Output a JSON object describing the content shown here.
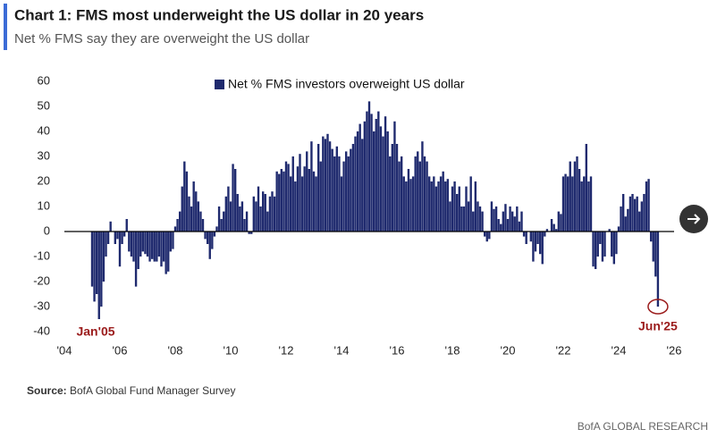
{
  "chart_data": {
    "type": "bar",
    "title": "Chart 1: FMS most underweight the US dollar in 20 years",
    "subtitle": "Net % FMS say they are overweight the US dollar",
    "source_label": "Source:",
    "source": "BofA Global Fund Manager Survey",
    "credit": "BofA GLOBAL RESEARCH",
    "annotations": [
      "Jan'05",
      "Jun'25"
    ],
    "legend": "top",
    "ylim": [
      -40,
      60
    ],
    "yticks": [
      -40,
      -30,
      -20,
      -10,
      0,
      10,
      20,
      30,
      40,
      50,
      60
    ],
    "xlim": [
      2004,
      2026
    ],
    "xticks": [
      {
        "value": 2004,
        "label": "'04"
      },
      {
        "value": 2006,
        "label": "'06"
      },
      {
        "value": 2008,
        "label": "'08"
      },
      {
        "value": 2010,
        "label": "'10"
      },
      {
        "value": 2012,
        "label": "'12"
      },
      {
        "value": 2014,
        "label": "'14"
      },
      {
        "value": 2016,
        "label": "'16"
      },
      {
        "value": 2018,
        "label": "'18"
      },
      {
        "value": 2020,
        "label": "'20"
      },
      {
        "value": 2022,
        "label": "'22"
      },
      {
        "value": 2024,
        "label": "'24"
      },
      {
        "value": 2026,
        "label": "'26"
      }
    ],
    "x": [
      2005,
      2005.083,
      2005.167,
      2005.25,
      2005.333,
      2005.417,
      2005.5,
      2005.583,
      2005.667,
      2005.75,
      2005.833,
      2005.917,
      2006,
      2006.083,
      2006.167,
      2006.25,
      2006.333,
      2006.417,
      2006.5,
      2006.583,
      2006.667,
      2006.75,
      2006.833,
      2006.917,
      2007,
      2007.083,
      2007.167,
      2007.25,
      2007.333,
      2007.417,
      2007.5,
      2007.583,
      2007.667,
      2007.75,
      2007.833,
      2007.917,
      2008,
      2008.083,
      2008.167,
      2008.25,
      2008.333,
      2008.417,
      2008.5,
      2008.583,
      2008.667,
      2008.75,
      2008.833,
      2008.917,
      2009,
      2009.083,
      2009.167,
      2009.25,
      2009.333,
      2009.417,
      2009.5,
      2009.583,
      2009.667,
      2009.75,
      2009.833,
      2009.917,
      2010,
      2010.083,
      2010.167,
      2010.25,
      2010.333,
      2010.417,
      2010.5,
      2010.583,
      2010.667,
      2010.75,
      2010.833,
      2010.917,
      2011,
      2011.083,
      2011.167,
      2011.25,
      2011.333,
      2011.417,
      2011.5,
      2011.583,
      2011.667,
      2011.75,
      2011.833,
      2011.917,
      2012,
      2012.083,
      2012.167,
      2012.25,
      2012.333,
      2012.417,
      2012.5,
      2012.583,
      2012.667,
      2012.75,
      2012.833,
      2012.917,
      2013,
      2013.083,
      2013.167,
      2013.25,
      2013.333,
      2013.417,
      2013.5,
      2013.583,
      2013.667,
      2013.75,
      2013.833,
      2013.917,
      2014,
      2014.083,
      2014.167,
      2014.25,
      2014.333,
      2014.417,
      2014.5,
      2014.583,
      2014.667,
      2014.75,
      2014.833,
      2014.917,
      2015,
      2015.083,
      2015.167,
      2015.25,
      2015.333,
      2015.417,
      2015.5,
      2015.583,
      2015.667,
      2015.75,
      2015.833,
      2015.917,
      2016,
      2016.083,
      2016.167,
      2016.25,
      2016.333,
      2016.417,
      2016.5,
      2016.583,
      2016.667,
      2016.75,
      2016.833,
      2016.917,
      2017,
      2017.083,
      2017.167,
      2017.25,
      2017.333,
      2017.417,
      2017.5,
      2017.583,
      2017.667,
      2017.75,
      2017.833,
      2017.917,
      2018,
      2018.083,
      2018.167,
      2018.25,
      2018.333,
      2018.417,
      2018.5,
      2018.583,
      2018.667,
      2018.75,
      2018.833,
      2018.917,
      2019,
      2019.083,
      2019.167,
      2019.25,
      2019.333,
      2019.417,
      2019.5,
      2019.583,
      2019.667,
      2019.75,
      2019.833,
      2019.917,
      2020,
      2020.083,
      2020.167,
      2020.25,
      2020.333,
      2020.417,
      2020.5,
      2020.583,
      2020.667,
      2020.75,
      2020.833,
      2020.917,
      2021,
      2021.083,
      2021.167,
      2021.25,
      2021.333,
      2021.417,
      2021.5,
      2021.583,
      2021.667,
      2021.75,
      2021.833,
      2021.917,
      2022,
      2022.083,
      2022.167,
      2022.25,
      2022.333,
      2022.417,
      2022.5,
      2022.583,
      2022.667,
      2022.75,
      2022.833,
      2022.917,
      2023,
      2023.083,
      2023.167,
      2023.25,
      2023.333,
      2023.417,
      2023.5,
      2023.583,
      2023.667,
      2023.75,
      2023.833,
      2023.917,
      2024,
      2024.083,
      2024.167,
      2024.25,
      2024.333,
      2024.417,
      2024.5,
      2024.583,
      2024.667,
      2024.75,
      2024.833,
      2024.917,
      2025,
      2025.083,
      2025.167,
      2025.25,
      2025.333,
      2025.417
    ],
    "series": [
      {
        "name": "Net % FMS investors overweight US dollar",
        "color": "#1f2a6e",
        "values": [
          -22,
          -28,
          -25,
          -35,
          -30,
          -20,
          -10,
          -5,
          4,
          0,
          -5,
          -3,
          -14,
          -5,
          -2,
          5,
          -8,
          -10,
          -12,
          -22,
          -15,
          -10,
          -8,
          -9,
          -10,
          -12,
          -11,
          -12,
          -12,
          -10,
          -14,
          -12,
          -17,
          -16,
          -8,
          -7,
          2,
          5,
          8,
          18,
          28,
          24,
          14,
          10,
          20,
          16,
          12,
          8,
          5,
          -3,
          -5,
          -11,
          -7,
          -2,
          2,
          10,
          5,
          8,
          14,
          18,
          12,
          27,
          25,
          15,
          10,
          12,
          5,
          8,
          -1,
          -1,
          14,
          12,
          18,
          10,
          16,
          15,
          8,
          14,
          16,
          14,
          24,
          23,
          25,
          24,
          28,
          27,
          22,
          30,
          20,
          26,
          31,
          22,
          26,
          32,
          25,
          36,
          24,
          22,
          35,
          28,
          38,
          37,
          39,
          36,
          33,
          30,
          34,
          30,
          22,
          28,
          32,
          30,
          33,
          35,
          38,
          40,
          43,
          37,
          44,
          48,
          52,
          47,
          40,
          45,
          48,
          42,
          38,
          46,
          40,
          30,
          35,
          44,
          35,
          28,
          30,
          22,
          20,
          25,
          21,
          22,
          30,
          32,
          28,
          36,
          30,
          28,
          22,
          20,
          22,
          18,
          20,
          22,
          24,
          20,
          21,
          12,
          18,
          20,
          15,
          18,
          10,
          10,
          18,
          12,
          22,
          8,
          20,
          12,
          10,
          8,
          -2,
          -4,
          -3,
          12,
          9,
          10,
          5,
          3,
          8,
          11,
          5,
          10,
          8,
          6,
          10,
          4,
          8,
          -2,
          -5,
          0,
          -4,
          -12,
          -8,
          -5,
          -9,
          -13,
          -2,
          1,
          0,
          5,
          3,
          1,
          8,
          7,
          22,
          23,
          22,
          28,
          22,
          28,
          30,
          25,
          20,
          22,
          35,
          20,
          22,
          -14,
          -15,
          -10,
          -5,
          -12,
          -10,
          0,
          1,
          -10,
          -13,
          -9,
          2,
          10,
          15,
          6,
          9,
          14,
          15,
          13,
          14,
          8,
          12,
          15,
          20,
          21,
          -4,
          -12,
          -18,
          -30
        ]
      }
    ]
  }
}
